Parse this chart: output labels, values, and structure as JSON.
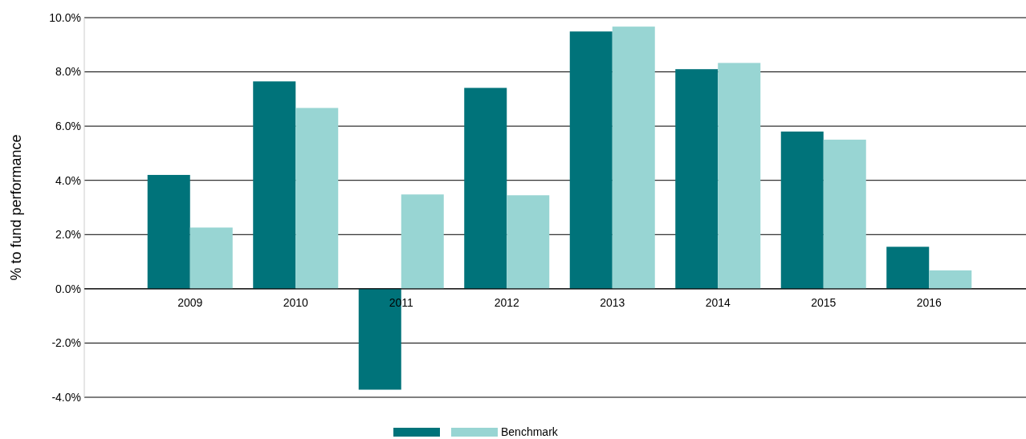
{
  "chart_data": {
    "type": "bar",
    "ylabel": "% to fund performance",
    "categories": [
      "2009",
      "2010",
      "2011",
      "2012",
      "2013",
      "2014",
      "2015",
      "2016"
    ],
    "series": [
      {
        "color": "#00737a",
        "values": [
          4.2,
          7.65,
          -3.72,
          7.41,
          9.49,
          8.1,
          5.8,
          1.55
        ]
      },
      {
        "name": "Benchmark",
        "color": "#98d5d3",
        "values": [
          2.26,
          6.67,
          3.48,
          3.45,
          9.67,
          8.33,
          5.5,
          0.68
        ]
      }
    ],
    "ylim": [
      -4,
      10
    ],
    "yticks": [
      {
        "value": -4,
        "label": "-4.0%"
      },
      {
        "value": -2,
        "label": "-2.0%"
      },
      {
        "value": 0,
        "label": "0.0%"
      },
      {
        "value": 2,
        "label": "2.0%"
      },
      {
        "value": 4,
        "label": "4.0%"
      },
      {
        "value": 6,
        "label": "6.0%"
      },
      {
        "value": 8,
        "label": "8.0%"
      },
      {
        "value": 10,
        "label": "10.0%"
      }
    ],
    "grid": "y",
    "legend": "bottom"
  }
}
